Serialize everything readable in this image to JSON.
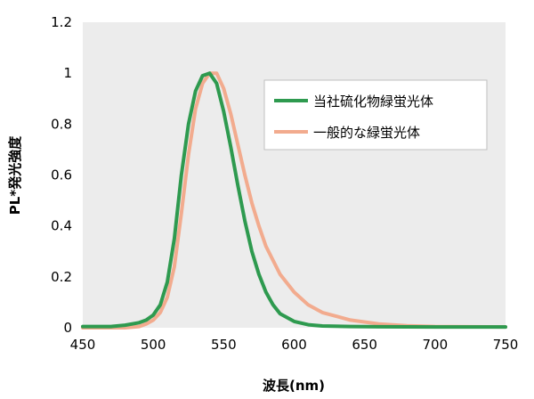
{
  "chart_data": {
    "type": "line",
    "title": "",
    "xlabel": "波長(nm)",
    "ylabel": "PL*発光強度",
    "xlim": [
      450,
      750
    ],
    "ylim": [
      0,
      1.2
    ],
    "x_ticks": [
      "450",
      "500",
      "550",
      "600",
      "650",
      "700",
      "750"
    ],
    "y_ticks": [
      "0",
      "0.2",
      "0.4",
      "0.6",
      "0.8",
      "1",
      "1.2"
    ],
    "grid": false,
    "legend_position": "top-right",
    "plot_background": "#ececec",
    "series": [
      {
        "name": "当社硫化物緑蛍光体",
        "color": "#2e9a4f",
        "x": [
          450,
          470,
          480,
          490,
          495,
          500,
          505,
          510,
          515,
          520,
          525,
          530,
          535,
          540,
          545,
          550,
          555,
          560,
          565,
          570,
          575,
          580,
          585,
          590,
          600,
          610,
          620,
          640,
          660,
          700,
          750
        ],
        "y": [
          0.005,
          0.005,
          0.01,
          0.02,
          0.03,
          0.05,
          0.09,
          0.18,
          0.35,
          0.6,
          0.8,
          0.93,
          0.99,
          1.0,
          0.96,
          0.85,
          0.71,
          0.56,
          0.42,
          0.3,
          0.21,
          0.14,
          0.09,
          0.055,
          0.025,
          0.012,
          0.007,
          0.005,
          0.004,
          0.003,
          0.003
        ]
      },
      {
        "name": "一般的な緑蛍光体",
        "color": "#f2ab8e",
        "x": [
          450,
          480,
          490,
          495,
          500,
          505,
          510,
          515,
          520,
          525,
          530,
          535,
          540,
          545,
          550,
          555,
          560,
          565,
          570,
          575,
          580,
          590,
          600,
          610,
          620,
          640,
          660,
          680,
          700,
          750
        ],
        "y": [
          0.0,
          0.0,
          0.005,
          0.015,
          0.03,
          0.06,
          0.12,
          0.24,
          0.45,
          0.68,
          0.86,
          0.96,
          1.0,
          1.0,
          0.94,
          0.84,
          0.72,
          0.6,
          0.49,
          0.4,
          0.32,
          0.21,
          0.14,
          0.09,
          0.06,
          0.03,
          0.015,
          0.008,
          0.005,
          0.003
        ]
      }
    ]
  }
}
